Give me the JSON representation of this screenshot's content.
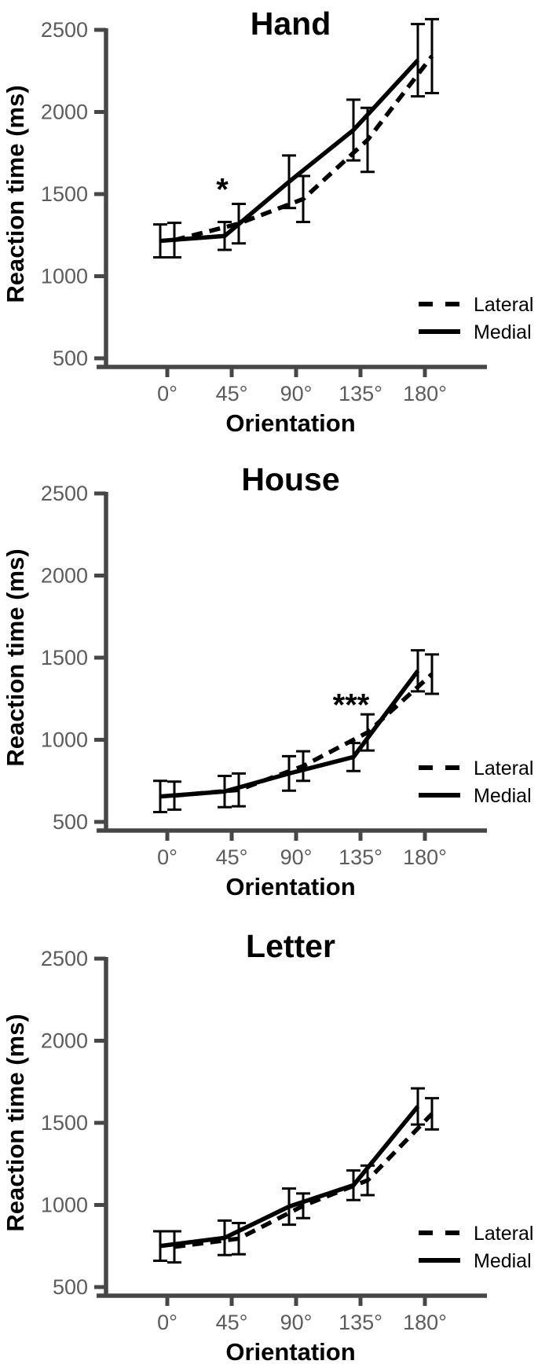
{
  "figure": {
    "background": "#ffffff",
    "colors": {
      "series": "#000000",
      "axis_line": "#474747",
      "tick_text": "#5c5c5c",
      "title_text": "#000000"
    }
  },
  "chart_data": [
    {
      "type": "line",
      "title": "Hand",
      "xlabel": "Orientation",
      "ylabel": "Reaction time (ms)",
      "categories": [
        "0°",
        "45°",
        "90°",
        "135°",
        "180°"
      ],
      "y_ticks": [
        500,
        1000,
        1500,
        2000,
        2500
      ],
      "ylim": [
        500,
        2500
      ],
      "grid": false,
      "legend_position": "bottom-right",
      "series": [
        {
          "name": "Lateral",
          "line_style": "dashed",
          "values": [
            1220,
            1320,
            1470,
            1830,
            2340
          ],
          "error_bars": [
            105,
            120,
            140,
            195,
            225
          ]
        },
        {
          "name": "Medial",
          "line_style": "solid",
          "values": [
            1215,
            1245,
            1575,
            1890,
            2315
          ],
          "error_bars": [
            100,
            85,
            160,
            185,
            220
          ]
        }
      ],
      "annotations": [
        {
          "text": "*",
          "category": "45°",
          "value": 1530,
          "dx": -12
        }
      ]
    },
    {
      "type": "line",
      "title": "House",
      "xlabel": "Orientation",
      "ylabel": "Reaction time (ms)",
      "categories": [
        "0°",
        "45°",
        "90°",
        "135°",
        "180°"
      ],
      "y_ticks": [
        500,
        1000,
        1500,
        2000,
        2500
      ],
      "ylim": [
        500,
        2500
      ],
      "grid": false,
      "legend_position": "bottom-right",
      "series": [
        {
          "name": "Lateral",
          "line_style": "dashed",
          "values": [
            660,
            695,
            840,
            1045,
            1400
          ],
          "error_bars": [
            85,
            100,
            90,
            110,
            120
          ]
        },
        {
          "name": "Medial",
          "line_style": "solid",
          "values": [
            655,
            685,
            795,
            895,
            1420
          ],
          "error_bars": [
            95,
            95,
            105,
            85,
            125
          ]
        }
      ],
      "annotations": [
        {
          "text": "***",
          "category": "135°",
          "value": 1215,
          "dx": -12
        }
      ]
    },
    {
      "type": "line",
      "title": "Letter",
      "xlabel": "Orientation",
      "ylabel": "Reaction time (ms)",
      "categories": [
        "0°",
        "45°",
        "90°",
        "135°",
        "180°"
      ],
      "y_ticks": [
        500,
        1000,
        1500,
        2000,
        2500
      ],
      "ylim": [
        500,
        2500
      ],
      "grid": false,
      "legend_position": "bottom-right",
      "series": [
        {
          "name": "Lateral",
          "line_style": "dashed",
          "values": [
            745,
            795,
            995,
            1150,
            1555
          ],
          "error_bars": [
            95,
            95,
            75,
            90,
            95
          ]
        },
        {
          "name": "Medial",
          "line_style": "solid",
          "values": [
            750,
            800,
            990,
            1120,
            1600
          ],
          "error_bars": [
            90,
            105,
            110,
            90,
            110
          ]
        }
      ],
      "annotations": []
    }
  ]
}
